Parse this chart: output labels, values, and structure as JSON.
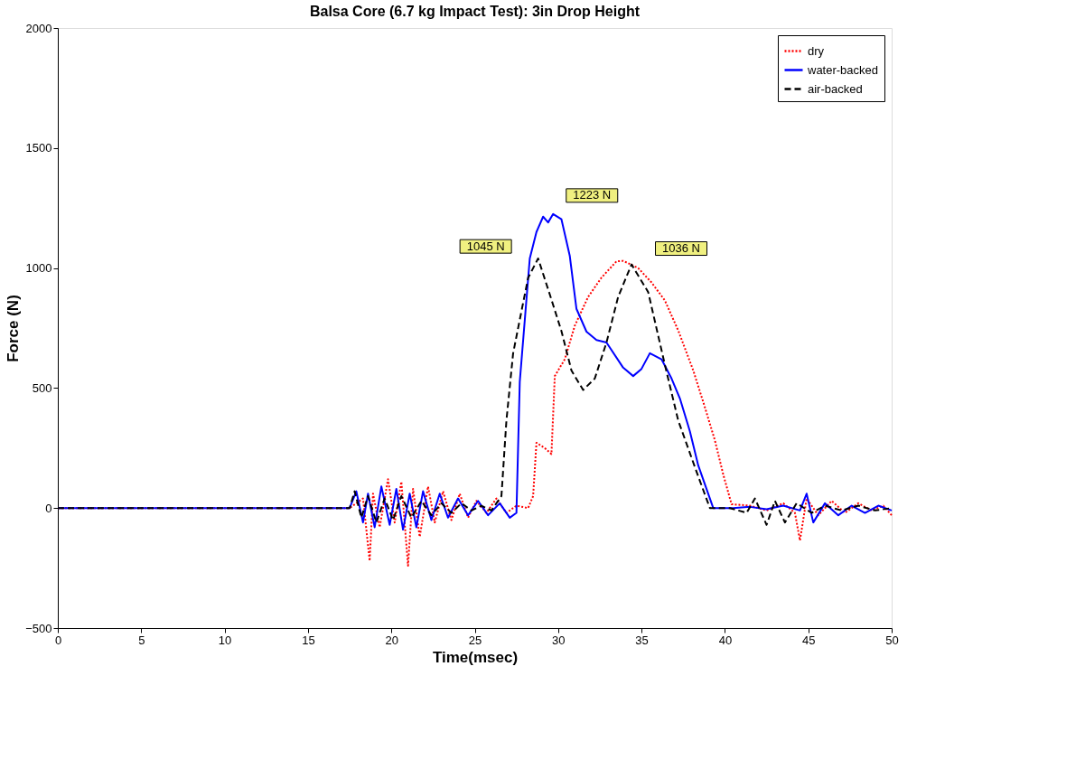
{
  "chart_data": {
    "type": "line",
    "title": "Balsa Core (6.7 kg Impact Test): 3in Drop Height",
    "xlabel": "Time(msec)",
    "ylabel": "Force (N)",
    "xlim": [
      0,
      50
    ],
    "ylim": [
      -500,
      2000
    ],
    "xticks": [
      0,
      5,
      10,
      15,
      20,
      25,
      30,
      35,
      40,
      45,
      50
    ],
    "yticks": [
      -500,
      0,
      500,
      1000,
      1500,
      2000
    ],
    "grid": false,
    "legend": "top right",
    "series": [
      {
        "name": "dry",
        "color": "#ff0000",
        "line_style": "dotted",
        "x": [
          0,
          17.5,
          18.3,
          18.7,
          18.9,
          19.3,
          19.8,
          20.2,
          20.6,
          21.0,
          21.3,
          21.7,
          22.2,
          22.6,
          23.1,
          23.6,
          24.1,
          24.6,
          25.1,
          25.7,
          26.3,
          26.9,
          27.5,
          28.2,
          28.5,
          28.7,
          29.2,
          29.6,
          29.8,
          30.4,
          31.0,
          31.8,
          32.6,
          33.5,
          33.9,
          34.8,
          35.6,
          36.4,
          37.2,
          38.1,
          38.8,
          39.4,
          39.9,
          40.4,
          41.5,
          42.5,
          43.5,
          44.2,
          44.5,
          44.9,
          45.6,
          46.4,
          47.2,
          48.0,
          48.8,
          49.5,
          50
        ],
        "values": [
          0,
          0,
          40,
          -220,
          60,
          -80,
          120,
          -60,
          110,
          -240,
          80,
          -120,
          90,
          -60,
          70,
          -50,
          60,
          -40,
          30,
          -20,
          40,
          -20,
          10,
          0,
          50,
          272,
          250,
          225,
          550,
          620,
          760,
          880,
          960,
          1028,
          1030,
          1000,
          940,
          865,
          740,
          574,
          420,
          282,
          140,
          16,
          10,
          -10,
          20,
          -20,
          -135,
          40,
          -30,
          30,
          -20,
          20,
          -10,
          10,
          -30
        ]
      },
      {
        "name": "water-backed",
        "color": "#0000ff",
        "line_style": "solid",
        "x": [
          0,
          17.5,
          17.9,
          18.3,
          18.6,
          19.0,
          19.4,
          19.9,
          20.3,
          20.7,
          21.1,
          21.5,
          21.9,
          22.4,
          22.9,
          23.4,
          24.0,
          24.6,
          25.2,
          25.8,
          26.5,
          27.1,
          27.5,
          27.7,
          28.3,
          28.7,
          29.1,
          29.4,
          29.7,
          30.2,
          30.7,
          31.1,
          31.7,
          32.3,
          32.9,
          33.9,
          34.5,
          35.0,
          35.5,
          36.2,
          36.8,
          37.3,
          37.9,
          38.4,
          39.3,
          40.5,
          41.5,
          42.5,
          43.5,
          44.5,
          44.9,
          45.3,
          46.0,
          46.8,
          47.6,
          48.4,
          49.2,
          50
        ],
        "values": [
          0,
          0,
          70,
          -60,
          60,
          -80,
          90,
          -70,
          80,
          -90,
          60,
          -80,
          70,
          -50,
          60,
          -40,
          40,
          -30,
          30,
          -30,
          20,
          -40,
          -20,
          526,
          1040,
          1150,
          1214,
          1190,
          1225,
          1203,
          1050,
          830,
          735,
          700,
          690,
          585,
          550,
          580,
          645,
          620,
          540,
          457,
          320,
          178,
          0,
          0,
          5,
          -5,
          10,
          -10,
          60,
          -60,
          20,
          -30,
          10,
          -20,
          10,
          -10
        ]
      },
      {
        "name": "air-backed",
        "color": "#000000",
        "line_style": "dashed",
        "x": [
          0,
          17.5,
          17.8,
          18.2,
          18.6,
          19.1,
          19.6,
          20.1,
          20.6,
          21.2,
          21.8,
          22.4,
          23.0,
          23.6,
          24.2,
          24.8,
          25.4,
          26.0,
          26.6,
          26.9,
          27.3,
          27.8,
          28.2,
          28.8,
          29.5,
          30.2,
          30.8,
          31.5,
          32.2,
          32.9,
          33.6,
          34.4,
          35.4,
          36.4,
          37.2,
          38.4,
          39.1,
          40.3,
          41.3,
          41.8,
          42.5,
          43.0,
          43.6,
          44.3,
          45.2,
          46.0,
          47.0,
          48.0,
          49.0,
          50
        ],
        "values": [
          0,
          0,
          70,
          -40,
          50,
          -60,
          40,
          -50,
          50,
          -40,
          30,
          -30,
          20,
          -20,
          20,
          -10,
          10,
          -10,
          50,
          365,
          644,
          820,
          959,
          1040,
          890,
          737,
          573,
          492,
          540,
          690,
          880,
          1015,
          900,
          597,
          365,
          132,
          0,
          0,
          -20,
          40,
          -70,
          30,
          -60,
          20,
          -20,
          10,
          -10,
          10,
          -10,
          0
        ]
      }
    ],
    "annotations": [
      {
        "text": "1045  N",
        "x": 28.8,
        "y": 1045
      },
      {
        "text": "1223 N",
        "x": 29.7,
        "y": 1223
      },
      {
        "text": "1036 N",
        "x": 34.4,
        "y": 1036
      }
    ]
  }
}
